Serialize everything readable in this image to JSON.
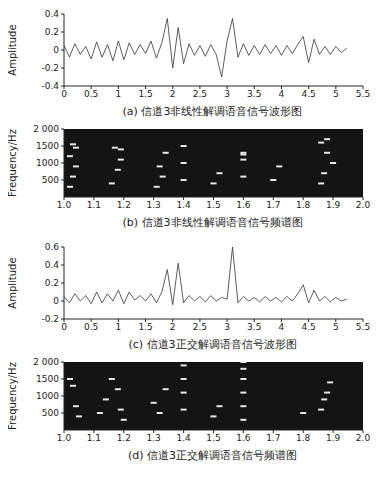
{
  "chart_data": [
    {
      "type": "line",
      "title": "(a) 信道3非线性解调语音信号波形图",
      "y_label": "Amplitude",
      "x": [
        0,
        0.1,
        0.2,
        0.3,
        0.4,
        0.5,
        0.6,
        0.7,
        0.8,
        0.9,
        1,
        1.1,
        1.2,
        1.3,
        1.4,
        1.5,
        1.6,
        1.7,
        1.8,
        1.9,
        2,
        2.1,
        2.2,
        2.3,
        2.4,
        2.5,
        2.6,
        2.7,
        2.8,
        2.9,
        3,
        3.1,
        3.2,
        3.3,
        3.4,
        3.5,
        3.6,
        3.7,
        3.8,
        3.9,
        4,
        4.1,
        4.2,
        4.3,
        4.4,
        4.5,
        4.6,
        4.7,
        4.8,
        4.9,
        5,
        5.1,
        5.2
      ],
      "values": [
        0.05,
        -0.08,
        0.07,
        -0.05,
        0.04,
        -0.1,
        0.09,
        -0.08,
        0.06,
        -0.12,
        0.1,
        -0.11,
        0.08,
        -0.05,
        0.06,
        -0.04,
        0.1,
        -0.09,
        0.08,
        0.35,
        -0.2,
        0.25,
        -0.15,
        0.07,
        -0.06,
        0.05,
        -0.07,
        0.06,
        -0.05,
        -0.3,
        0.1,
        0.35,
        -0.08,
        0.07,
        -0.06,
        0.05,
        -0.05,
        0.06,
        -0.04,
        0.05,
        -0.06,
        0.05,
        -0.04,
        0.06,
        0.15,
        -0.14,
        0.12,
        -0.05,
        0.04,
        -0.05,
        0.04,
        -0.03,
        0.02
      ],
      "color": "#333333",
      "xlim": [
        0,
        5.5
      ],
      "xticks": [
        0,
        0.5,
        1,
        1.5,
        2,
        2.5,
        3,
        3.5,
        4,
        4.5,
        5,
        5.5
      ],
      "ylim": [
        -0.4,
        0.4
      ],
      "yticks": [
        -0.4,
        -0.2,
        0,
        0.2,
        0.4
      ],
      "grid": false
    },
    {
      "type": "scatter",
      "title": "(b) 信道3非线性解调语音信号频谱图",
      "y_label": "Frequency/Hz",
      "x": [
        1.02,
        1.03,
        1.04,
        1.02,
        1.04,
        1.03,
        1.16,
        1.18,
        1.19,
        1.17,
        1.19,
        1.31,
        1.33,
        1.32,
        1.34,
        1.4,
        1.4,
        1.4,
        1.5,
        1.52,
        1.6,
        1.6,
        1.6,
        1.6,
        1.7,
        1.72,
        1.86,
        1.87,
        1.88,
        1.86,
        1.88,
        1.9
      ],
      "values": [
        300,
        600,
        900,
        1200,
        1450,
        1550,
        400,
        800,
        1400,
        1450,
        1100,
        300,
        600,
        900,
        1300,
        500,
        1000,
        1500,
        400,
        700,
        1100,
        1250,
        1300,
        600,
        500,
        900,
        400,
        700,
        1300,
        1600,
        1700,
        1000
      ],
      "color": "#e6e6e6",
      "xlim": [
        1,
        2
      ],
      "xticks": [
        {
          "value": 1,
          "label": "1.0"
        },
        1.1,
        1.2,
        1.3,
        1.4,
        1.5,
        1.6,
        1.7,
        1.8,
        1.9,
        {
          "value": 2,
          "label": "2.0"
        }
      ],
      "ylim": [
        0,
        2000
      ],
      "yticks": [
        500,
        1000,
        1500,
        {
          "value": 2000,
          "label": "2 000"
        }
      ],
      "grid": false
    },
    {
      "type": "line",
      "title": "(c) 信道3正交解调语音信号波形图",
      "y_label": "Amplitude",
      "x": [
        0,
        0.1,
        0.2,
        0.3,
        0.4,
        0.5,
        0.6,
        0.7,
        0.8,
        0.9,
        1,
        1.1,
        1.2,
        1.3,
        1.4,
        1.5,
        1.6,
        1.7,
        1.8,
        1.9,
        2,
        2.1,
        2.2,
        2.3,
        2.4,
        2.5,
        2.6,
        2.7,
        2.8,
        2.9,
        3,
        3.1,
        3.2,
        3.3,
        3.4,
        3.5,
        3.6,
        3.7,
        3.8,
        3.9,
        4,
        4.1,
        4.2,
        4.3,
        4.4,
        4.5,
        4.6,
        4.7,
        4.8,
        4.9,
        5,
        5.1,
        5.2
      ],
      "values": [
        0.05,
        -0.02,
        0.08,
        0.0,
        0.06,
        -0.03,
        0.1,
        -0.02,
        0.08,
        0.0,
        0.12,
        -0.03,
        0.1,
        0.01,
        0.06,
        0.0,
        0.08,
        -0.02,
        0.1,
        0.35,
        -0.04,
        0.42,
        -0.02,
        0.06,
        0.0,
        0.05,
        -0.01,
        0.06,
        0.0,
        0.04,
        0.02,
        0.6,
        -0.02,
        0.05,
        0.0,
        0.04,
        -0.01,
        0.05,
        0.0,
        0.04,
        -0.01,
        0.05,
        0.0,
        0.08,
        0.18,
        -0.02,
        0.12,
        0.0,
        0.05,
        -0.01,
        0.04,
        0.0,
        0.02
      ],
      "color": "#333333",
      "xlim": [
        0,
        5.5
      ],
      "xticks": [
        0,
        0.5,
        1,
        1.5,
        2,
        2.5,
        3,
        3.5,
        4,
        4.5,
        5,
        5.5
      ],
      "ylim": [
        -0.2,
        0.6
      ],
      "yticks": [
        -0.2,
        0,
        0.2,
        0.4,
        0.6
      ],
      "grid": false
    },
    {
      "type": "scatter",
      "title": "(d) 信道3正交解调语音信号频谱图",
      "y_label": "Frequency/Hz",
      "x": [
        1.02,
        1.03,
        1.04,
        1.05,
        1.12,
        1.14,
        1.16,
        1.18,
        1.19,
        1.2,
        1.3,
        1.32,
        1.34,
        1.4,
        1.4,
        1.4,
        1.4,
        1.5,
        1.52,
        1.6,
        1.6,
        1.6,
        1.6,
        1.6,
        1.6,
        1.8,
        1.86,
        1.87,
        1.88,
        1.89
      ],
      "values": [
        1500,
        1300,
        700,
        400,
        500,
        900,
        1500,
        1200,
        600,
        300,
        800,
        500,
        1200,
        600,
        1100,
        1500,
        1900,
        400,
        700,
        300,
        700,
        1100,
        1500,
        1800,
        2000,
        500,
        600,
        900,
        1100,
        1400
      ],
      "color": "#e6e6e6",
      "xlim": [
        1,
        2
      ],
      "xticks": [
        {
          "value": 1,
          "label": "1.0"
        },
        1.1,
        1.2,
        1.3,
        1.4,
        1.5,
        1.6,
        1.7,
        1.8,
        1.9,
        {
          "value": 2,
          "label": "2.0"
        }
      ],
      "ylim": [
        0,
        2000
      ],
      "yticks": [
        500,
        1000,
        1500,
        {
          "value": 2000,
          "label": "2 000"
        }
      ],
      "grid": false
    }
  ]
}
